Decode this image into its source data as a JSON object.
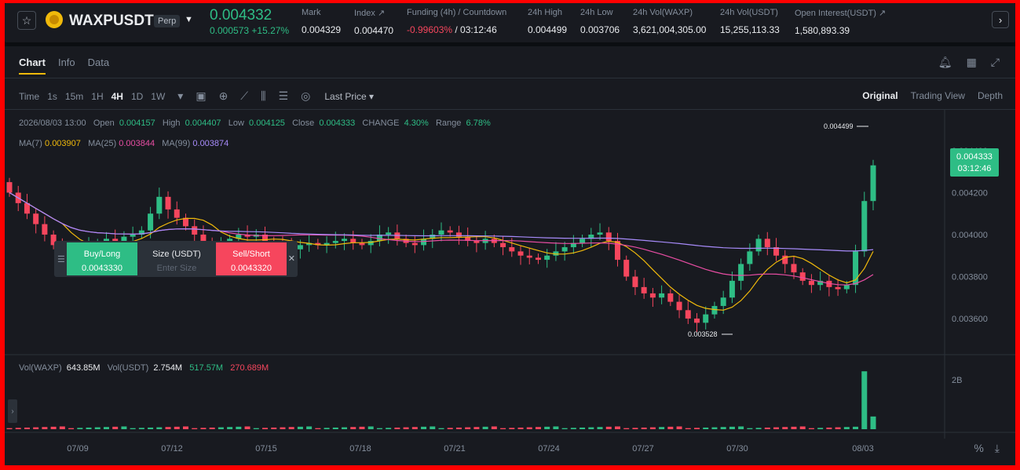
{
  "header": {
    "symbol": "WAXPUSDT",
    "badge": "Perp",
    "last_price": "0.004332",
    "change": "0.000573 +15.27%",
    "stats": [
      {
        "label": "Mark",
        "value": "0.004329"
      },
      {
        "label": "Index ↗",
        "value": "0.004470"
      },
      {
        "label": "Funding (4h) / Countdown",
        "value_neg": "-0.99603%",
        "value_rest": " / 03:12:46"
      },
      {
        "label": "24h High",
        "value": "0.004499"
      },
      {
        "label": "24h Low",
        "value": "0.003706"
      },
      {
        "label": "24h Vol(WAXP)",
        "value": "3,621,004,305.00"
      },
      {
        "label": "24h Vol(USDT)",
        "value": "15,255,113.33"
      },
      {
        "label": "Open Interest(USDT) ↗",
        "value": "1,580,893.39"
      }
    ]
  },
  "tabs": [
    "Chart",
    "Info",
    "Data"
  ],
  "toolbar": {
    "intervals": [
      "Time",
      "1s",
      "15m",
      "1H",
      "4H",
      "1D",
      "1W"
    ],
    "active_interval": "4H",
    "price_type": "Last Price",
    "views": [
      "Original",
      "Trading View",
      "Depth"
    ],
    "active_view": "Original"
  },
  "ohlc": {
    "date": "2026/08/03 13:00",
    "open_label": "Open",
    "open": "0.004157",
    "high_label": "High",
    "high": "0.004407",
    "low_label": "Low",
    "low": "0.004125",
    "close_label": "Close",
    "close": "0.004333",
    "change_label": "CHANGE",
    "change": "4.30%",
    "range_label": "Range",
    "range": "6.78%"
  },
  "ma": {
    "ma7_label": "MA(7)",
    "ma7": "0.003907",
    "ma25_label": "MA(25)",
    "ma25": "0.003844",
    "ma99_label": "MA(99)",
    "ma99": "0.003874"
  },
  "volume": {
    "label": "Vol(WAXP)",
    "waxp": "643.85M",
    "usdt_label": "Vol(USDT)",
    "usdt": "2.754M",
    "ma1": "517.57M",
    "ma2": "270.689M"
  },
  "price_tag": {
    "price": "0.004333",
    "countdown": "03:12:46"
  },
  "order": {
    "buy_label": "Buy/Long",
    "buy_price": "0.0043330",
    "size_label": "Size (USDT)",
    "size_placeholder": "Enter Size",
    "sell_label": "Sell/Short",
    "sell_price": "0.0043320"
  },
  "chart_data": {
    "type": "candlestick",
    "y_ticks": [
      "0.004400",
      "0.004200",
      "0.004000",
      "0.003800",
      "0.003600"
    ],
    "ylim": [
      0.0035,
      0.0045
    ],
    "x_ticks": [
      "07/09",
      "07/12",
      "07/15",
      "07/18",
      "07/21",
      "07/24",
      "07/27",
      "07/30",
      "08/03"
    ],
    "vol_tick": "2B",
    "high_marker": "0.004499",
    "low_marker": "0.003528",
    "colors": {
      "up": "#2ebd85",
      "down": "#f6465d",
      "ma7": "#f0b90b",
      "ma25": "#e84da3",
      "ma99": "#a78bfa"
    },
    "closes": [
      0.0042,
      0.00415,
      0.0041,
      0.00405,
      0.004,
      0.00395,
      0.00392,
      0.0039,
      0.00392,
      0.00395,
      0.00396,
      0.00398,
      0.00397,
      0.00399,
      0.004,
      0.00402,
      0.0041,
      0.00418,
      0.00412,
      0.00408,
      0.00404,
      0.004,
      0.00396,
      0.00394,
      0.00395,
      0.00398,
      0.004,
      0.00399,
      0.004,
      0.00397,
      0.00396,
      0.00394,
      0.00393,
      0.00395,
      0.00396,
      0.00395,
      0.00396,
      0.00397,
      0.00398,
      0.00396,
      0.00395,
      0.00397,
      0.004,
      0.00401,
      0.00398,
      0.00396,
      0.00395,
      0.00398,
      0.004,
      0.00402,
      0.00401,
      0.00399,
      0.00397,
      0.00396,
      0.00398,
      0.00396,
      0.00394,
      0.00392,
      0.0039,
      0.00389,
      0.00388,
      0.0039,
      0.00392,
      0.00394,
      0.00396,
      0.00398,
      0.004,
      0.00401,
      0.00397,
      0.00388,
      0.0038,
      0.00375,
      0.00372,
      0.0037,
      0.00372,
      0.00368,
      0.00364,
      0.0036,
      0.00358,
      0.00362,
      0.00366,
      0.0037,
      0.00378,
      0.00386,
      0.00392,
      0.00398,
      0.00394,
      0.0039,
      0.00386,
      0.00382,
      0.00378,
      0.00376,
      0.00378,
      0.00375,
      0.00374,
      0.00376,
      0.00392,
      0.00416,
      0.00433
    ]
  }
}
